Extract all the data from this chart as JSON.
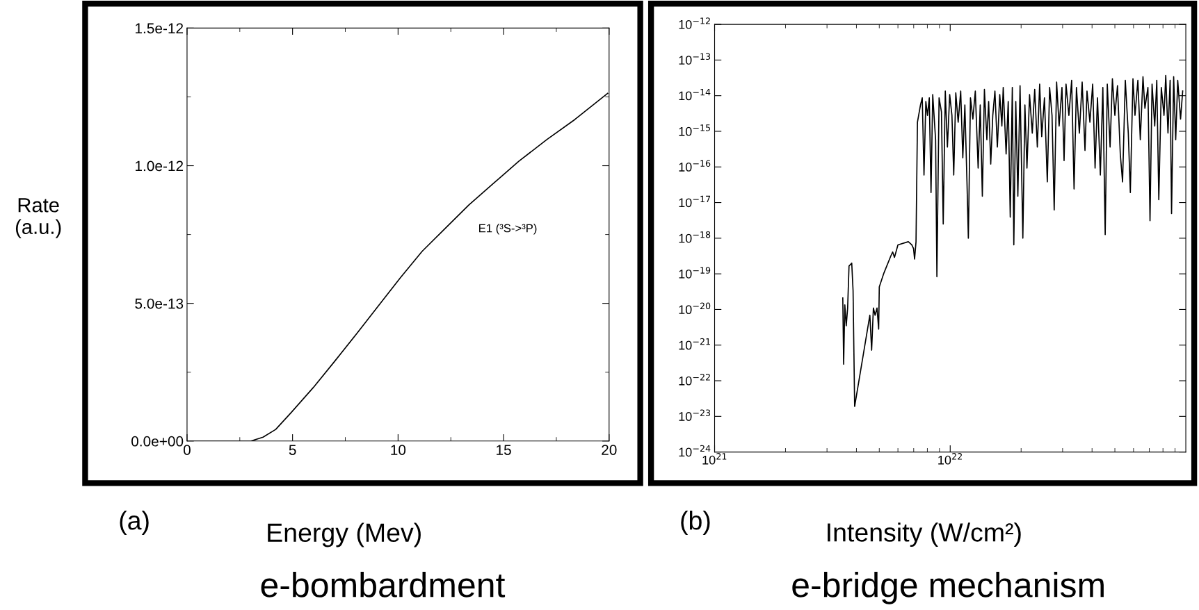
{
  "chart_data": [
    {
      "type": "line",
      "xlabel": "Energy (Mev)",
      "ylabel": "Rate\n(a.u.)",
      "annotations": [
        "(a)",
        "e-bombardment",
        "E1 (³S->³P)"
      ],
      "x": [
        0,
        3.03,
        3.6,
        4.2,
        4.94,
        5.98,
        7.0,
        8.04,
        9.08,
        10.11,
        11.14,
        12.18,
        13.36,
        14.54,
        15.72,
        17.05,
        18.38,
        19.93
      ],
      "series": [
        {
          "color": "#000000",
          "values": [
            0,
            0,
            1.4e-14,
            4.2e-14,
            1.04e-13,
            1.94e-13,
            2.9e-13,
            3.9e-13,
            4.92e-13,
            5.93e-13,
            6.89e-13,
            7.68e-13,
            8.58e-13,
            9.37e-13,
            1.016e-12,
            1.095e-12,
            1.168e-12,
            1.263e-12
          ]
        }
      ],
      "xlim": [
        0,
        20
      ],
      "ylim": [
        0,
        1.5e-12
      ],
      "xticks": [
        0,
        5,
        10,
        15,
        20
      ],
      "yticks": [
        {
          "value": 0,
          "label": "0.0e+00"
        },
        {
          "value": 5e-13,
          "label": "5.0e-13"
        },
        {
          "value": 1e-12,
          "label": "1.0e-12"
        },
        {
          "value": 1.5e-12,
          "label": "1.5e-12"
        }
      ],
      "grid": false,
      "legend": false
    },
    {
      "type": "line",
      "xlabel": "Intensity (W/cm²)",
      "log": "xy",
      "annotations": [
        "(b)",
        "e-bridge mechanism"
      ],
      "x": [
        3.5e+21,
        3.53e+21,
        3.57e+21,
        3.62e+21,
        3.67e+21,
        3.72e+21,
        3.82e+21,
        3.87e+21,
        3.93e+21,
        4.56e+21,
        4.64e+21,
        4.72e+21,
        4.8e+21,
        4.89e+21,
        4.97e+21,
        5e+21,
        5.23e+21,
        5.6e+21,
        5.7e+21,
        5.8e+21,
        6e+21,
        6.64e+21,
        6.87e+21,
        6.99e+21,
        7.06e+21,
        7.16e+21,
        7.26e+21,
        7.48e+21,
        7.61e+21,
        7.74e+21,
        7.88e+21,
        8.01e+21,
        8.15e+21,
        8.29e+21,
        8.43e+21,
        8.67e+21,
        8.78e+21,
        8.97e+21,
        9.18e+21,
        9.34e+21,
        9.53e+21,
        9.73e+21,
        9.95e+21,
        1.017e+22,
        1.035e+22,
        1.056e+22,
        1.081e+22,
        1.108e+22,
        1.131e+22,
        1.154e+22,
        1.178e+22,
        1.194e+22,
        1.219e+22,
        1.248e+22,
        1.278e+22,
        1.314e+22,
        1.341e+22,
        1.369e+22,
        1.397e+22,
        1.431e+22,
        1.456e+22,
        1.486e+22,
        1.516e+22,
        1.548e+22,
        1.585e+22,
        1.623e+22,
        1.657e+22,
        1.679e+22,
        1.727e+22,
        1.763e+22,
        1.798e+22,
        1.835e+22,
        1.862e+22,
        1.898e+22,
        1.937e+22,
        1.979e+22,
        2.034e+22,
        2.075e+22,
        2.117e+22,
        2.172e+22,
        2.23e+22,
        2.284e+22,
        2.343e+22,
        2.397e+22,
        2.446e+22,
        2.512e+22,
        2.583e+22,
        2.642e+22,
        2.705e+22,
        2.763e+22,
        2.829e+22,
        2.899e+22,
        2.981e+22,
        3.043e+22,
        3.101e+22,
        3.19e+22,
        3.277e+22,
        3.355e+22,
        3.434e+22,
        3.533e+22,
        3.631e+22,
        3.733e+22,
        3.807e+22,
        3.917e+22,
        4.025e+22,
        4.12e+22,
        4.218e+22,
        4.338e+22,
        4.445e+22,
        4.548e+22,
        4.642e+22,
        4.771e+22,
        4.88e+22,
        4.999e+22,
        5.129e+22,
        5.271e+22,
        5.39e+22,
        5.536e+22,
        5.7e+22,
        5.815e+22,
        5.966e+22,
        6.085e+22,
        6.26e+22,
        6.41e+22,
        6.58e+22,
        6.705e+22,
        6.905e+22,
        7.048e+22,
        7.19e+22,
        7.38e+22,
        7.53e+22,
        7.68e+22,
        7.87e+22,
        8.08e+22,
        8.22e+22,
        8.4e+22,
        8.58e+22,
        8.7e+22,
        8.88e+22,
        9.06e+22,
        9.24e+22,
        9.5e+22,
        9.7e+22
      ],
      "series": [
        {
          "color": "#000000",
          "values": [
            2.1e-20,
            2.9e-22,
            1.35e-20,
            3.5e-21,
            1.1e-20,
            1.66e-19,
            2e-19,
            3.4e-20,
            1.9e-23,
            6.9e-21,
            7.2e-22,
            1.1e-20,
            6.9e-21,
            1.1e-20,
            2.8e-21,
            4.3e-20,
            1.05e-19,
            3.2e-19,
            4.1e-19,
            2.9e-19,
            6.5e-19,
            8e-19,
            6.5e-19,
            5.1e-19,
            2.6e-19,
            8e-19,
            1.8e-15,
            5.5e-15,
            8.7e-15,
            5.9e-17,
            6.9e-15,
            2.8e-15,
            8.7e-15,
            1.9e-17,
            1.07e-14,
            5.8e-16,
            8.3e-20,
            8.7e-15,
            3.5e-15,
            2.5e-18,
            1.35e-14,
            3.6e-16,
            1.07e-14,
            2.8e-15,
            5.9e-17,
            1.2e-14,
            1.8e-15,
            1.35e-14,
            1.8e-16,
            5.5e-15,
            3.8e-17,
            1e-18,
            8.7e-15,
            2.2e-15,
            1.35e-14,
            9.3e-17,
            5.5e-15,
            1.5e-17,
            1.5e-14,
            5.8e-16,
            6.9e-15,
            1.2e-16,
            2.8e-15,
            1.35e-14,
            3.6e-16,
            1.07e-14,
            1.4e-15,
            1.7e-14,
            2.3e-16,
            6.9e-15,
            3.9e-18,
            1.7e-14,
            6.5e-19,
            6.9e-15,
            1.5e-17,
            1.9e-14,
            1e-18,
            5.5e-15,
            9.3e-17,
            1.07e-14,
            8.9e-16,
            1.5e-14,
            3.6e-16,
            2.1e-14,
            7.1e-16,
            8.7e-15,
            3.8e-17,
            1.7e-14,
            2.8e-15,
            6.2e-18,
            2.4e-14,
            1.4e-15,
            1.7e-14,
            1.5e-16,
            2.1e-14,
            2.8e-15,
            2.7e-14,
            2.4e-17,
            1.7e-14,
            8.9e-16,
            2.4e-14,
            2.9e-16,
            1.35e-14,
            1.8e-15,
            2.1e-14,
            9.3e-17,
            8.7e-15,
            5.9e-17,
            1.7e-14,
            1.26e-18,
            2.1e-14,
            3.6e-16,
            3e-14,
            2.8e-15,
            1.9e-14,
            2.3e-16,
            3.8e-17,
            2.7e-14,
            8.9e-16,
            1.9e-17,
            3e-14,
            2.8e-15,
            2.7e-14,
            5.8e-16,
            3.4e-14,
            4.4e-15,
            1.7e-14,
            3.1e-18,
            2.1e-14,
            1.4e-15,
            2.7e-14,
            1.2e-17,
            1.7e-14,
            2.8e-15,
            3.7e-14,
            8.9e-16,
            2.7e-14,
            4.9e-18,
            3.4e-14,
            5.8e-16,
            2.7e-14,
            2.2e-15,
            1.35e-14
          ]
        }
      ],
      "xlim": [
        1e+21,
        1e+23
      ],
      "ylim": [
        1e-24,
        1e-12
      ],
      "xticks": [
        {
          "value": 1e+21,
          "label": "10$^{21}$"
        },
        {
          "value": 1e+22,
          "label": "10$^{22}$"
        }
      ],
      "yticks": [
        {
          "value": 1e-24,
          "label": "10$^{−24}$"
        },
        {
          "value": 1e-23,
          "label": "10$^{−23}$"
        },
        {
          "value": 1e-22,
          "label": "10$^{−22}$"
        },
        {
          "value": 1e-21,
          "label": "10$^{−21}$"
        },
        {
          "value": 1e-20,
          "label": "10$^{−20}$"
        },
        {
          "value": 1e-19,
          "label": "10$^{−19}$"
        },
        {
          "value": 1e-18,
          "label": "10$^{−18}$"
        },
        {
          "value": 1e-17,
          "label": "10$^{−17}$"
        },
        {
          "value": 1e-16,
          "label": "10$^{−16}$"
        },
        {
          "value": 1e-15,
          "label": "10$^{−15}$"
        },
        {
          "value": 1e-14,
          "label": "10$^{−14}$"
        },
        {
          "value": 1e-13,
          "label": "10$^{−13}$"
        },
        {
          "value": 1e-12,
          "label": "10$^{−12}$"
        }
      ],
      "grid": false,
      "legend": false
    }
  ]
}
